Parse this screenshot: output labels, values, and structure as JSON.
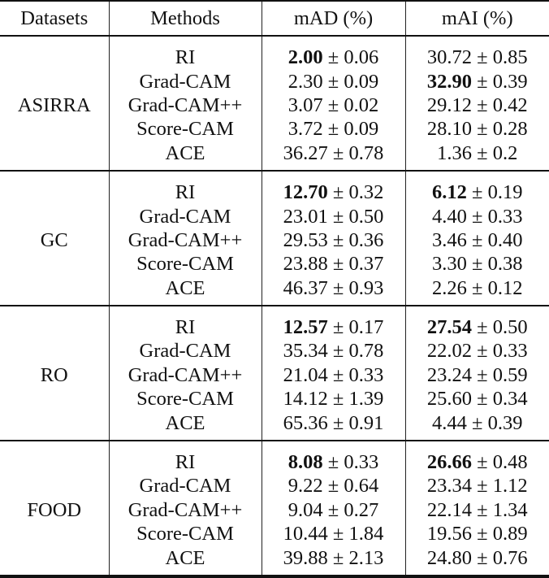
{
  "header": {
    "datasets": "Datasets",
    "methods": "Methods",
    "mad": "mAD (%)",
    "mai": "mAI (%)"
  },
  "pm": "±",
  "groups": [
    {
      "dataset": "ASIRRA",
      "rows": [
        {
          "method": "RI",
          "mad_mean": "2.00",
          "mad_std": "0.06",
          "mad_bold": true,
          "mai_mean": "30.72",
          "mai_std": "0.85",
          "mai_bold": false
        },
        {
          "method": "Grad-CAM",
          "mad_mean": "2.30",
          "mad_std": "0.09",
          "mad_bold": false,
          "mai_mean": "32.90",
          "mai_std": "0.39",
          "mai_bold": true
        },
        {
          "method": "Grad-CAM++",
          "mad_mean": "3.07",
          "mad_std": "0.02",
          "mad_bold": false,
          "mai_mean": "29.12",
          "mai_std": "0.42",
          "mai_bold": false
        },
        {
          "method": "Score-CAM",
          "mad_mean": "3.72",
          "mad_std": "0.09",
          "mad_bold": false,
          "mai_mean": "28.10",
          "mai_std": "0.28",
          "mai_bold": false
        },
        {
          "method": "ACE",
          "mad_mean": "36.27",
          "mad_std": "0.78",
          "mad_bold": false,
          "mai_mean": "1.36",
          "mai_std": "0.2",
          "mai_bold": false
        }
      ]
    },
    {
      "dataset": "GC",
      "rows": [
        {
          "method": "RI",
          "mad_mean": "12.70",
          "mad_std": "0.32",
          "mad_bold": true,
          "mai_mean": "6.12",
          "mai_std": "0.19",
          "mai_bold": true
        },
        {
          "method": "Grad-CAM",
          "mad_mean": "23.01",
          "mad_std": "0.50",
          "mad_bold": false,
          "mai_mean": "4.40",
          "mai_std": "0.33",
          "mai_bold": false
        },
        {
          "method": "Grad-CAM++",
          "mad_mean": "29.53",
          "mad_std": "0.36",
          "mad_bold": false,
          "mai_mean": "3.46",
          "mai_std": "0.40",
          "mai_bold": false
        },
        {
          "method": "Score-CAM",
          "mad_mean": "23.88",
          "mad_std": "0.37",
          "mad_bold": false,
          "mai_mean": "3.30",
          "mai_std": "0.38",
          "mai_bold": false
        },
        {
          "method": "ACE",
          "mad_mean": "46.37",
          "mad_std": "0.93",
          "mad_bold": false,
          "mai_mean": "2.26",
          "mai_std": "0.12",
          "mai_bold": false
        }
      ]
    },
    {
      "dataset": "RO",
      "rows": [
        {
          "method": "RI",
          "mad_mean": "12.57",
          "mad_std": "0.17",
          "mad_bold": true,
          "mai_mean": "27.54",
          "mai_std": "0.50",
          "mai_bold": true
        },
        {
          "method": "Grad-CAM",
          "mad_mean": "35.34",
          "mad_std": "0.78",
          "mad_bold": false,
          "mai_mean": "22.02",
          "mai_std": "0.33",
          "mai_bold": false
        },
        {
          "method": "Grad-CAM++",
          "mad_mean": "21.04",
          "mad_std": "0.33",
          "mad_bold": false,
          "mai_mean": "23.24",
          "mai_std": "0.59",
          "mai_bold": false
        },
        {
          "method": "Score-CAM",
          "mad_mean": "14.12",
          "mad_std": "1.39",
          "mad_bold": false,
          "mai_mean": "25.60",
          "mai_std": "0.34",
          "mai_bold": false
        },
        {
          "method": "ACE",
          "mad_mean": "65.36",
          "mad_std": "0.91",
          "mad_bold": false,
          "mai_mean": "4.44",
          "mai_std": "0.39",
          "mai_bold": false
        }
      ]
    },
    {
      "dataset": "FOOD",
      "rows": [
        {
          "method": "RI",
          "mad_mean": "8.08",
          "mad_std": "0.33",
          "mad_bold": true,
          "mai_mean": "26.66",
          "mai_std": "0.48",
          "mai_bold": true
        },
        {
          "method": "Grad-CAM",
          "mad_mean": "9.22",
          "mad_std": "0.64",
          "mad_bold": false,
          "mai_mean": "23.34",
          "mai_std": "1.12",
          "mai_bold": false
        },
        {
          "method": "Grad-CAM++",
          "mad_mean": "9.04",
          "mad_std": "0.27",
          "mad_bold": false,
          "mai_mean": "22.14",
          "mai_std": "1.34",
          "mai_bold": false
        },
        {
          "method": "Score-CAM",
          "mad_mean": "10.44",
          "mad_std": "1.84",
          "mad_bold": false,
          "mai_mean": "19.56",
          "mai_std": "0.89",
          "mai_bold": false
        },
        {
          "method": "ACE",
          "mad_mean": "39.88",
          "mad_std": "2.13",
          "mad_bold": false,
          "mai_mean": "24.80",
          "mai_std": "0.76",
          "mai_bold": false
        }
      ]
    }
  ]
}
